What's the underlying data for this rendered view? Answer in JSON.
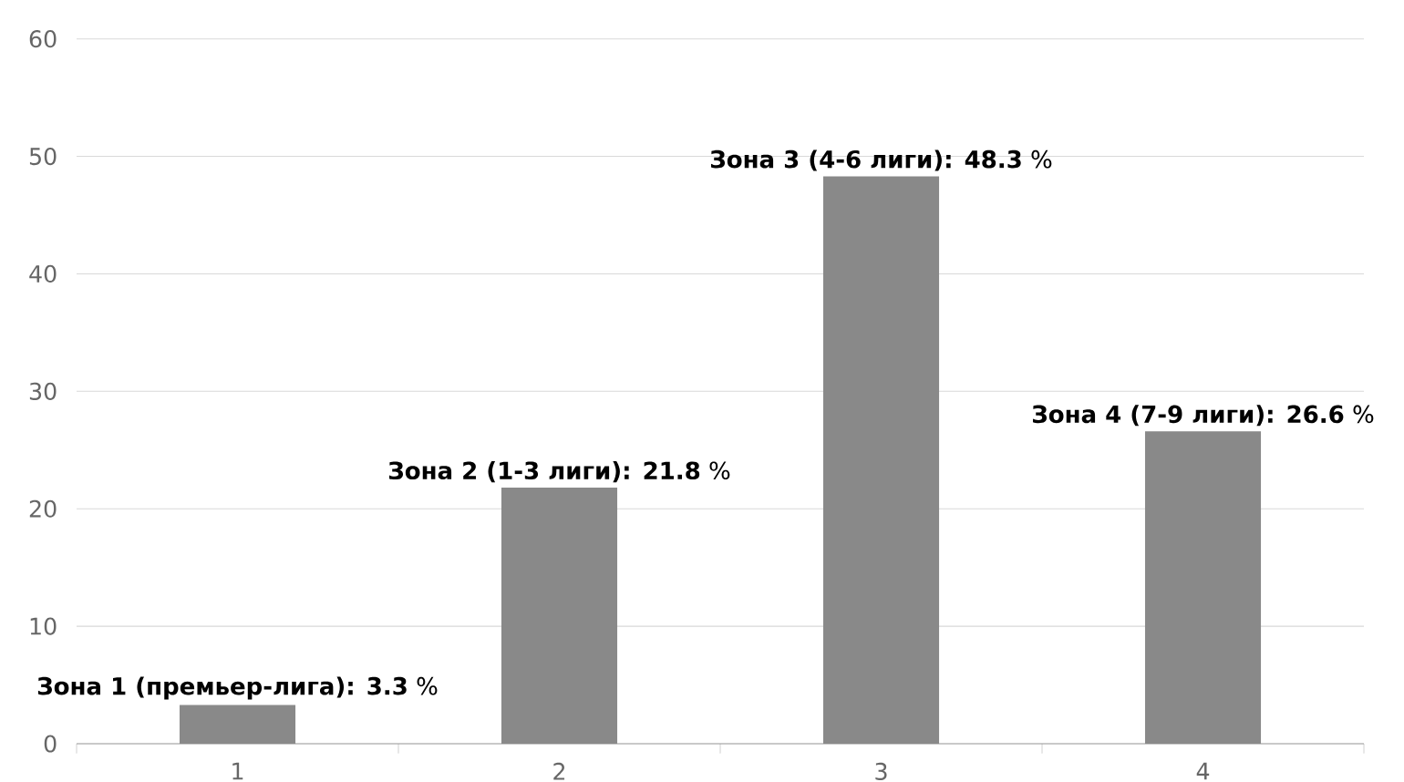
{
  "chart_data": {
    "type": "bar",
    "categories": [
      "1",
      "2",
      "3",
      "4"
    ],
    "values": [
      3.3,
      21.8,
      48.3,
      26.6
    ],
    "color": "#898989",
    "value_labels": [
      "**Зона 1 (премьер-лига): 3.3** %",
      "**Зона 2 (1-3 лиги): 21.8** %",
      "**Зона 3 (4-6 лиги): 48.3** %",
      "**Зона 4 (7-9 лиги): 26.6** %"
    ],
    "ylim": [
      0,
      60
    ],
    "yticks": [
      0,
      10,
      20,
      30,
      40,
      50,
      60
    ],
    "grid": "y"
  }
}
